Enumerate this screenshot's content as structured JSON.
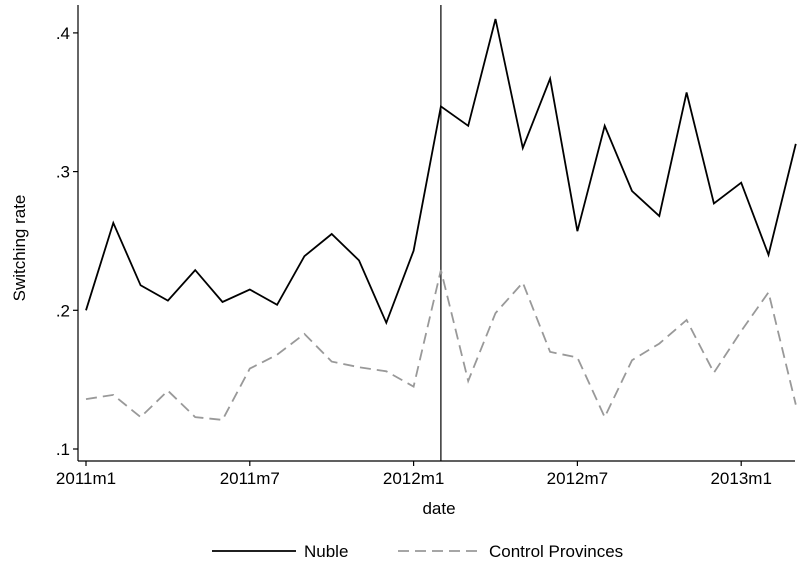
{
  "chart_data": {
    "type": "line",
    "title": "",
    "xlabel": "date",
    "ylabel": "Switching rate",
    "ylim": [
      0.1,
      0.41
    ],
    "y_ticks": [
      {
        "value": 0.1,
        "label": ".1"
      },
      {
        "value": 0.2,
        "label": ".2"
      },
      {
        "value": 0.3,
        "label": ".3"
      },
      {
        "value": 0.4,
        "label": ".4"
      }
    ],
    "x_ticks": [
      {
        "value": 0,
        "label": "2011m1"
      },
      {
        "value": 6,
        "label": "2011m7"
      },
      {
        "value": 12,
        "label": "2012m1"
      },
      {
        "value": 18,
        "label": "2012m7"
      },
      {
        "value": 24,
        "label": "2013m1"
      }
    ],
    "xlim": [
      0,
      26
    ],
    "vertical_line_x": 13,
    "grid": false,
    "legend_position": "bottom",
    "x": [
      "2011m1",
      "2011m2",
      "2011m3",
      "2011m4",
      "2011m5",
      "2011m6",
      "2011m7",
      "2011m8",
      "2011m9",
      "2011m10",
      "2011m11",
      "2011m12",
      "2012m1",
      "2012m2",
      "2012m3",
      "2012m4",
      "2012m5",
      "2012m6",
      "2012m7",
      "2012m8",
      "2012m9",
      "2012m10",
      "2012m11",
      "2012m12",
      "2013m1",
      "2013m2",
      "2013m3"
    ],
    "series": [
      {
        "name": "Nuble",
        "color": "#000000",
        "dash": "solid",
        "values": [
          0.2,
          0.263,
          0.218,
          0.207,
          0.229,
          0.206,
          0.215,
          0.204,
          0.239,
          0.255,
          0.236,
          0.191,
          0.243,
          0.347,
          0.333,
          0.41,
          0.317,
          0.367,
          0.257,
          0.333,
          0.286,
          0.268,
          0.357,
          0.277,
          0.292,
          0.24,
          0.32
        ]
      },
      {
        "name": "Control Provinces",
        "color": "#999999",
        "dash": "dashed",
        "values": [
          0.136,
          0.139,
          0.123,
          0.142,
          0.123,
          0.121,
          0.158,
          0.168,
          0.183,
          0.163,
          0.159,
          0.156,
          0.145,
          0.229,
          0.149,
          0.198,
          0.22,
          0.17,
          0.166,
          0.123,
          0.164,
          0.176,
          0.193,
          0.155,
          0.185,
          0.213,
          0.132
        ]
      }
    ]
  }
}
